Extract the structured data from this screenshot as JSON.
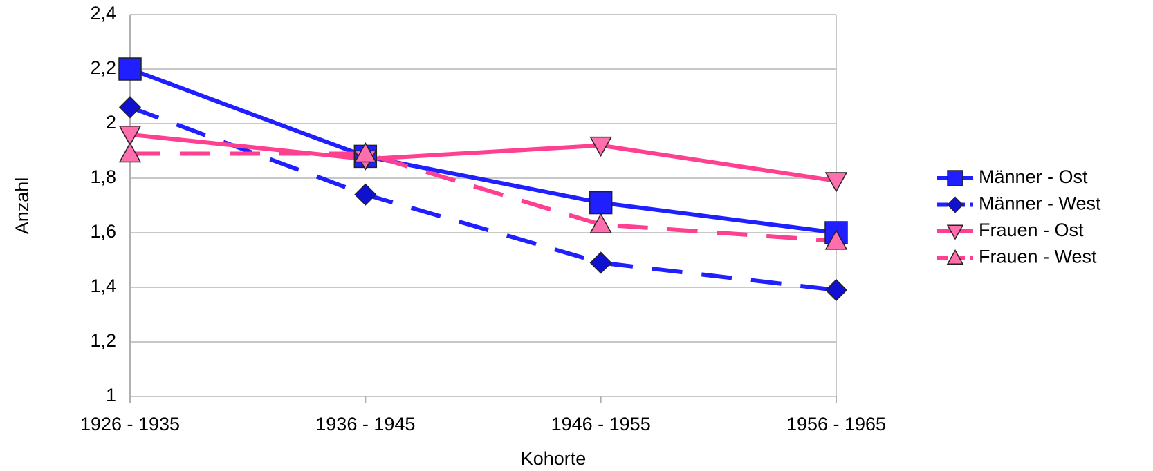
{
  "chart_data": {
    "type": "line",
    "x_label": "Kohorte",
    "y_label": "Anzahl",
    "categories": [
      "1926 - 1935",
      "1936 - 1945",
      "1946 - 1955",
      "1956 - 1965"
    ],
    "series": [
      {
        "name": "Männer - Ost",
        "color": "#1f1fff",
        "marker": "square",
        "dashed": false,
        "values": [
          2.2,
          1.88,
          1.71,
          1.6
        ]
      },
      {
        "name": "Männer - West",
        "color": "#1f1fff",
        "marker": "diamond",
        "dashed": true,
        "values": [
          2.06,
          1.74,
          1.49,
          1.39
        ]
      },
      {
        "name": "Frauen - Ost",
        "color": "#ff3f8f",
        "marker": "triangle-down",
        "dashed": false,
        "values": [
          1.96,
          1.87,
          1.92,
          1.79
        ]
      },
      {
        "name": "Frauen - West",
        "color": "#ff3f8f",
        "marker": "triangle-up",
        "dashed": true,
        "values": [
          1.89,
          1.89,
          1.63,
          1.57
        ]
      }
    ],
    "ylim": [
      1,
      2.4
    ],
    "yticks": [
      1,
      {
        "value": 1.2,
        "label": "1,2"
      },
      {
        "value": 1.4,
        "label": "1,4"
      },
      {
        "value": 1.6,
        "label": "1,6"
      },
      {
        "value": 1.8,
        "label": "1,8"
      },
      2,
      {
        "value": 2.2,
        "label": "2,2"
      },
      {
        "value": 2.4,
        "label": "2,4"
      }
    ],
    "grid": true,
    "legend": "right"
  }
}
